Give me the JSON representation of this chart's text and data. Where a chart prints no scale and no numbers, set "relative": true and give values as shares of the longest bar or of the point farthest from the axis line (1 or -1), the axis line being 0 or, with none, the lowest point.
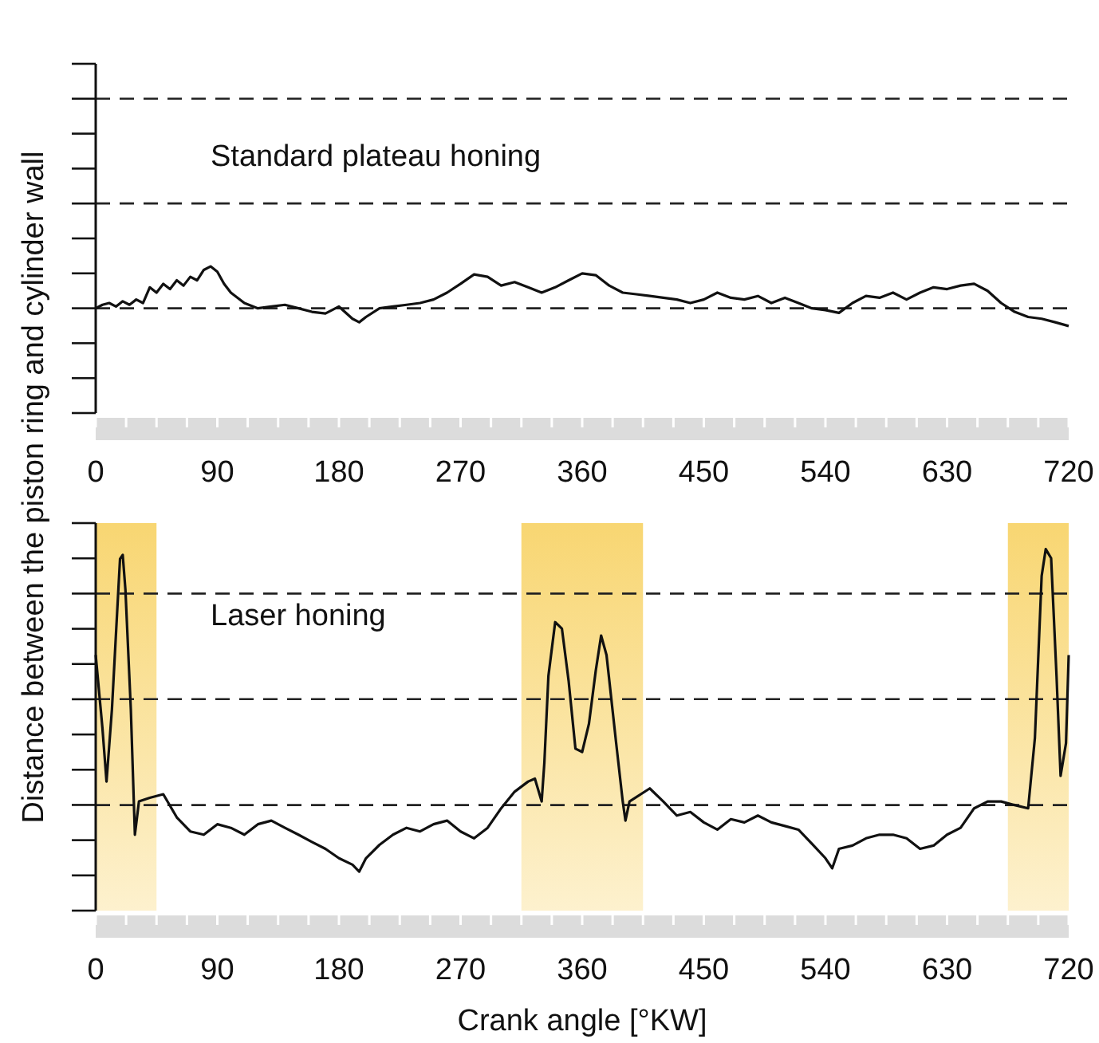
{
  "chart_data": [
    {
      "type": "line",
      "relative": true,
      "ylabel": "Distance between the piston ring and cylinder wall",
      "annotations": [
        "Standard plateau honing"
      ],
      "xlim": [
        0,
        720
      ],
      "xticks": [
        0,
        {
          "value": 22.5,
          "label": null
        },
        {
          "value": 45,
          "label": null
        },
        {
          "value": 67.5,
          "label": null
        },
        90,
        {
          "value": 112.5,
          "label": null
        },
        {
          "value": 135,
          "label": null
        },
        {
          "value": 157.5,
          "label": null
        },
        180,
        {
          "value": 202.5,
          "label": null
        },
        {
          "value": 225,
          "label": null
        },
        {
          "value": 247.5,
          "label": null
        },
        270,
        {
          "value": 292.5,
          "label": null
        },
        {
          "value": 315,
          "label": null
        },
        {
          "value": 337.5,
          "label": null
        },
        360,
        {
          "value": 382.5,
          "label": null
        },
        {
          "value": 405,
          "label": null
        },
        {
          "value": 427.5,
          "label": null
        },
        450,
        {
          "value": 472.5,
          "label": null
        },
        {
          "value": 495,
          "label": null
        },
        {
          "value": 517.5,
          "label": null
        },
        540,
        {
          "value": 562.5,
          "label": null
        },
        {
          "value": 585,
          "label": null
        },
        {
          "value": 607.5,
          "label": null
        },
        630,
        {
          "value": 652.5,
          "label": null
        },
        {
          "value": 675,
          "label": null
        },
        {
          "value": 697.5,
          "label": null
        },
        720
      ],
      "tick_labels": "x",
      "line_style": "solid",
      "marker": "none",
      "ref_lines": [
        {
          "axis": "y",
          "value": 0.714,
          "line_style": "dashed",
          "color": "#222222"
        },
        {
          "axis": "y",
          "value": 1.429,
          "line_style": "dashed",
          "color": "#222222"
        },
        {
          "axis": "y",
          "value": 2.143,
          "line_style": "dashed",
          "color": "#222222"
        }
      ],
      "x": [
        0,
        5,
        10,
        15,
        20,
        25,
        30,
        35,
        40,
        45,
        50,
        55,
        60,
        65,
        70,
        75,
        80,
        85,
        90,
        95,
        100,
        105,
        110,
        120,
        130,
        140,
        150,
        160,
        170,
        180,
        190,
        195,
        200,
        210,
        220,
        230,
        240,
        250,
        260,
        270,
        280,
        290,
        300,
        310,
        320,
        330,
        340,
        350,
        360,
        370,
        380,
        390,
        400,
        410,
        420,
        430,
        440,
        450,
        460,
        470,
        480,
        490,
        500,
        510,
        520,
        530,
        540,
        550,
        560,
        570,
        580,
        590,
        600,
        610,
        620,
        630,
        640,
        650,
        660,
        670,
        680,
        690,
        700,
        710,
        720
      ],
      "series": [
        {
          "color": "#111111",
          "values": [
            0.714,
            0.738,
            0.75,
            0.726,
            0.762,
            0.738,
            0.774,
            0.75,
            0.857,
            0.821,
            0.881,
            0.845,
            0.905,
            0.869,
            0.929,
            0.905,
            0.976,
            1,
            0.964,
            0.881,
            0.821,
            0.786,
            0.75,
            0.714,
            0.726,
            0.738,
            0.714,
            0.69,
            0.679,
            0.726,
            0.643,
            0.619,
            0.655,
            0.714,
            0.726,
            0.738,
            0.75,
            0.774,
            0.821,
            0.881,
            0.945,
            0.929,
            0.869,
            0.893,
            0.857,
            0.821,
            0.857,
            0.905,
            0.952,
            0.94,
            0.869,
            0.821,
            0.81,
            0.798,
            0.786,
            0.774,
            0.75,
            0.774,
            0.821,
            0.786,
            0.774,
            0.798,
            0.75,
            0.786,
            0.75,
            0.714,
            0.702,
            0.683,
            0.75,
            0.798,
            0.786,
            0.821,
            0.774,
            0.821,
            0.857,
            0.845,
            0.869,
            0.881,
            0.833,
            0.75,
            0.69,
            0.655,
            0.643,
            0.619,
            0.593
          ]
        }
      ]
    },
    {
      "type": "line",
      "relative": true,
      "xlabel": "Crank angle [°KW]",
      "annotations": [
        "Laser honing"
      ],
      "xlim": [
        0,
        720
      ],
      "xticks": [
        0,
        {
          "value": 22.5,
          "label": null
        },
        {
          "value": 45,
          "label": null
        },
        {
          "value": 67.5,
          "label": null
        },
        90,
        {
          "value": 112.5,
          "label": null
        },
        {
          "value": 135,
          "label": null
        },
        {
          "value": 157.5,
          "label": null
        },
        180,
        {
          "value": 202.5,
          "label": null
        },
        {
          "value": 225,
          "label": null
        },
        {
          "value": 247.5,
          "label": null
        },
        270,
        {
          "value": 292.5,
          "label": null
        },
        {
          "value": 315,
          "label": null
        },
        {
          "value": 337.5,
          "label": null
        },
        360,
        {
          "value": 382.5,
          "label": null
        },
        {
          "value": 405,
          "label": null
        },
        {
          "value": 427.5,
          "label": null
        },
        450,
        {
          "value": 472.5,
          "label": null
        },
        {
          "value": 495,
          "label": null
        },
        {
          "value": 517.5,
          "label": null
        },
        540,
        {
          "value": 562.5,
          "label": null
        },
        {
          "value": 585,
          "label": null
        },
        {
          "value": 607.5,
          "label": null
        },
        630,
        {
          "value": 652.5,
          "label": null
        },
        {
          "value": 675,
          "label": null
        },
        {
          "value": 697.5,
          "label": null
        },
        720
      ],
      "tick_labels": "x",
      "line_style": "solid",
      "marker": "none",
      "ref_lines": [
        {
          "axis": "y",
          "value": 0.292,
          "line_style": "dashed",
          "color": "#222222"
        },
        {
          "axis": "y",
          "value": 0.585,
          "line_style": "dashed",
          "color": "#222222"
        },
        {
          "axis": "y",
          "value": 0.877,
          "line_style": "dashed",
          "color": "#222222"
        }
      ],
      "bands": [
        {
          "axis": "x",
          "from": 0,
          "to": 45,
          "color": "#f8d672"
        },
        {
          "axis": "x",
          "from": 315,
          "to": 405,
          "color": "#f8d672"
        },
        {
          "axis": "x",
          "from": 675,
          "to": 720,
          "color": "#f8d672"
        }
      ],
      "x": [
        0,
        5,
        8,
        12,
        16,
        18,
        20,
        22,
        26,
        29,
        32,
        40,
        50,
        60,
        70,
        80,
        90,
        100,
        110,
        120,
        130,
        140,
        150,
        160,
        170,
        180,
        190,
        195,
        200,
        210,
        220,
        230,
        240,
        250,
        260,
        270,
        280,
        290,
        300,
        310,
        320,
        325,
        330,
        332,
        335,
        340,
        345,
        350,
        355,
        360,
        365,
        370,
        374,
        378,
        385,
        390,
        392,
        395,
        410,
        420,
        430,
        440,
        450,
        460,
        470,
        480,
        490,
        500,
        510,
        520,
        530,
        540,
        545,
        550,
        560,
        570,
        580,
        590,
        600,
        610,
        620,
        630,
        640,
        650,
        660,
        670,
        680,
        690,
        695,
        700,
        703,
        707,
        711,
        714,
        718,
        720
      ],
      "series": [
        {
          "color": "#111111",
          "values": [
            0.707,
            0.504,
            0.357,
            0.556,
            0.835,
            0.973,
            0.984,
            0.887,
            0.556,
            0.21,
            0.302,
            0.312,
            0.322,
            0.258,
            0.219,
            0.21,
            0.239,
            0.229,
            0.21,
            0.239,
            0.249,
            0.229,
            0.21,
            0.19,
            0.171,
            0.145,
            0.127,
            0.108,
            0.145,
            0.182,
            0.21,
            0.229,
            0.219,
            0.239,
            0.249,
            0.219,
            0.2,
            0.229,
            0.283,
            0.329,
            0.357,
            0.365,
            0.302,
            0.409,
            0.649,
            0.798,
            0.78,
            0.634,
            0.448,
            0.439,
            0.517,
            0.663,
            0.761,
            0.707,
            0.468,
            0.302,
            0.249,
            0.302,
            0.338,
            0.302,
            0.263,
            0.273,
            0.244,
            0.224,
            0.253,
            0.244,
            0.263,
            0.244,
            0.234,
            0.224,
            0.185,
            0.145,
            0.117,
            0.171,
            0.18,
            0.2,
            0.21,
            0.21,
            0.2,
            0.171,
            0.18,
            0.21,
            0.229,
            0.283,
            0.302,
            0.302,
            0.292,
            0.283,
            0.478,
            0.926,
            1,
            0.975,
            0.649,
            0.373,
            0.463,
            0.707
          ]
        }
      ]
    }
  ]
}
